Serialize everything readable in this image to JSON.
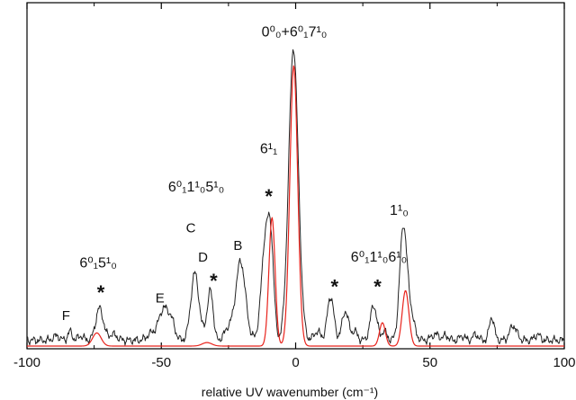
{
  "chart_data": {
    "type": "line",
    "title": "",
    "xlabel": "relative UV wavenumber (cm⁻¹)",
    "ylabel": "",
    "xlim": [
      -100,
      100
    ],
    "ylim": [
      0,
      1.1
    ],
    "x_ticks": [
      -100,
      -50,
      0,
      50,
      100
    ],
    "x_tick_labels": [
      "-100",
      "-50",
      "0",
      "50",
      "100"
    ],
    "y_ticks_shown": false,
    "grid": false,
    "colors": {
      "experiment": "#222222",
      "simulation": "#e8231c"
    },
    "series": [
      {
        "color": "#222222",
        "baseline": 0.02,
        "peaks": [
          [
            -89,
            0.015,
            1.2
          ],
          [
            -84,
            0.03,
            0.8
          ],
          [
            -80,
            0.015,
            1.0
          ],
          [
            -73,
            0.11,
            1.4
          ],
          [
            -68,
            0.02,
            1.5
          ],
          [
            -54,
            0.02,
            1.5
          ],
          [
            -49,
            0.11,
            2.0
          ],
          [
            -46,
            0.04,
            1.2
          ],
          [
            -37.5,
            0.23,
            1.5
          ],
          [
            -33,
            0.06,
            1.0
          ],
          [
            -31.5,
            0.15,
            0.9
          ],
          [
            -25,
            0.04,
            1.5
          ],
          [
            -20.5,
            0.27,
            1.8
          ],
          [
            -11,
            0.37,
            1.6
          ],
          [
            -9,
            0.2,
            1.0
          ],
          [
            -0.8,
            1.0,
            1.8
          ],
          [
            8,
            0.03,
            1.2
          ],
          [
            13,
            0.15,
            1.2
          ],
          [
            18.5,
            0.1,
            1.2
          ],
          [
            22,
            0.03,
            1.0
          ],
          [
            29,
            0.12,
            1.2
          ],
          [
            33,
            0.03,
            1.0
          ],
          [
            40,
            0.37,
            1.3
          ],
          [
            42.5,
            0.1,
            1.5
          ],
          [
            52,
            0.02,
            1.5
          ],
          [
            56,
            0.015,
            1.0
          ],
          [
            62,
            0.015,
            1.0
          ],
          [
            67,
            0.02,
            1.0
          ],
          [
            73,
            0.08,
            0.9
          ],
          [
            81,
            0.05,
            1.3
          ],
          [
            90,
            0.02,
            1.0
          ]
        ]
      },
      {
        "color": "#e8231c",
        "baseline": 0.0,
        "peaks": [
          [
            -74,
            0.045,
            1.6
          ],
          [
            -33,
            0.012,
            1.8
          ],
          [
            -8.8,
            0.44,
            1.15
          ],
          [
            -0.7,
            0.96,
            1.45
          ],
          [
            32.3,
            0.08,
            1.1
          ],
          [
            40.9,
            0.19,
            1.25
          ]
        ]
      }
    ],
    "peak_labels": [
      {
        "text": "0⁰₀+6⁰₁7¹₀",
        "x": -0.5,
        "y": 1.06
      },
      {
        "text": "6¹₁",
        "x": -10,
        "y": 0.66
      },
      {
        "text": "6⁰₁1¹₀5¹₀",
        "x": -37,
        "y": 0.53
      },
      {
        "text": "6⁰₁5¹₀",
        "x": -73.5,
        "y": 0.27
      },
      {
        "text": "6⁰₁1¹₀6¹₀",
        "x": 31,
        "y": 0.29
      },
      {
        "text": "1¹₀",
        "x": 38.5,
        "y": 0.45
      }
    ],
    "annotations": [
      {
        "text": "F",
        "x": -85.5,
        "y": 0.09
      },
      {
        "text": "E",
        "x": -50.5,
        "y": 0.15
      },
      {
        "text": "D",
        "x": -34.5,
        "y": 0.29
      },
      {
        "text": "C",
        "x": -39,
        "y": 0.39
      },
      {
        "text": "B",
        "x": -21.5,
        "y": 0.33
      }
    ],
    "star_marks": [
      {
        "text": "*",
        "x": -72.5,
        "y": 0.16
      },
      {
        "text": "*",
        "x": -30.5,
        "y": 0.2
      },
      {
        "text": "*",
        "x": -10,
        "y": 0.49
      },
      {
        "text": "*",
        "x": 14.5,
        "y": 0.18
      },
      {
        "text": "*",
        "x": 30.5,
        "y": 0.18
      }
    ]
  }
}
